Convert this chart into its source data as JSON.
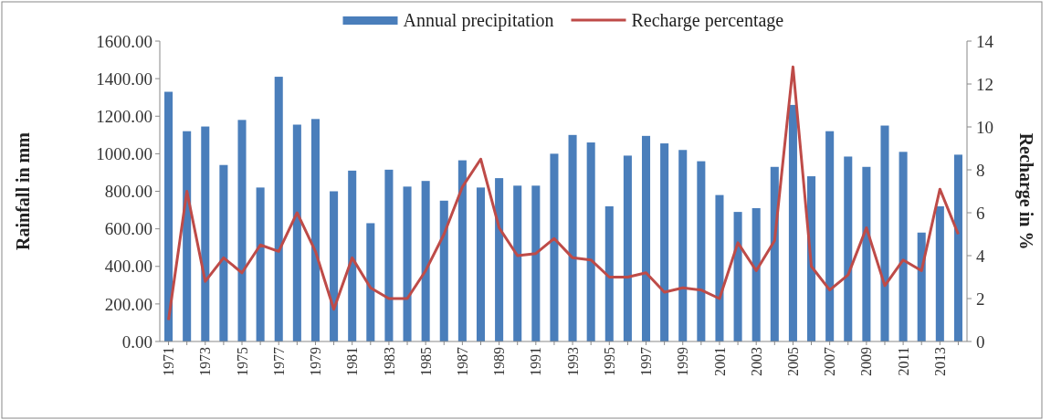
{
  "chart_data": {
    "type": "bar",
    "ylabel": "Rainfall in mm",
    "y2label": "Recharge in %",
    "categories": [
      "1971",
      null,
      "1973",
      null,
      "1975",
      null,
      "1977",
      null,
      "1979",
      null,
      "1981",
      null,
      "1983",
      null,
      "1985",
      null,
      "1987",
      null,
      "1989",
      null,
      "1991",
      null,
      "1993",
      null,
      "1995",
      null,
      "1997",
      null,
      "1999",
      null,
      "2001",
      null,
      "2003",
      null,
      "2005",
      null,
      "2007",
      null,
      "2009",
      null,
      "2011",
      null,
      "2013",
      null
    ],
    "series": [
      {
        "name": "Annual precipitation",
        "color": "#4a7ebb",
        "values": [
          1330,
          1120,
          1145,
          940,
          1180,
          820,
          1410,
          1155,
          1185,
          800,
          910,
          630,
          915,
          825,
          855,
          750,
          965,
          820,
          870,
          830,
          830,
          1000,
          1100,
          1060,
          720,
          990,
          1095,
          1055,
          1020,
          960,
          780,
          690,
          710,
          930,
          1260,
          880,
          1120,
          985,
          930,
          1150,
          1010,
          580,
          720,
          995
        ]
      },
      {
        "name": "Recharge percentage",
        "type": "line",
        "axis": "y2",
        "color": "#be4b48",
        "values": [
          1.0,
          7.0,
          2.8,
          3.9,
          3.2,
          4.5,
          4.2,
          6.0,
          4.2,
          1.5,
          3.9,
          2.5,
          2.0,
          2.0,
          3.3,
          5.0,
          7.2,
          8.5,
          5.3,
          4.0,
          4.1,
          4.8,
          3.9,
          3.8,
          3.0,
          3.0,
          3.2,
          2.3,
          2.5,
          2.4,
          2.0,
          4.6,
          3.3,
          4.7,
          12.8,
          3.5,
          2.4,
          3.1,
          5.3,
          2.6,
          3.8,
          3.3,
          7.1,
          5.0
        ]
      }
    ],
    "ylim": [
      0,
      1600
    ],
    "yticks": [
      {
        "value": 0,
        "label": "0.00"
      },
      {
        "value": 200,
        "label": "200.00"
      },
      {
        "value": 400,
        "label": "400.00"
      },
      {
        "value": 600,
        "label": "600.00"
      },
      {
        "value": 800,
        "label": "800.00"
      },
      {
        "value": 1000,
        "label": "1000.00"
      },
      {
        "value": 1200,
        "label": "1200.00"
      },
      {
        "value": 1400,
        "label": "1400.00"
      },
      {
        "value": 1600,
        "label": "1600.00"
      }
    ],
    "y2lim": [
      0,
      14
    ],
    "y2ticks": [
      0,
      2,
      4,
      6,
      8,
      10,
      12,
      14
    ],
    "legend": "top",
    "grid": false,
    "marker": "none",
    "line_style": "solid"
  }
}
